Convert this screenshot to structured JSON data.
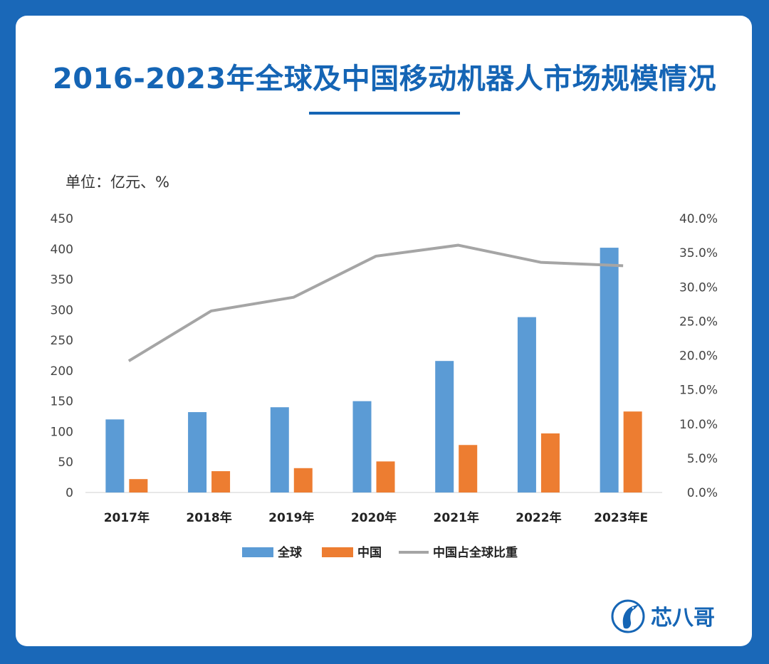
{
  "title": "2016-2023年全球及中国移动机器人市场规模情况",
  "unit_label": "单位：亿元、%",
  "brand": "芯八哥",
  "colors": {
    "background": "#1a68b8",
    "title": "#1565b5",
    "global": "#5b9bd5",
    "china": "#ed7d31",
    "share": "#a5a5a5"
  },
  "chart_data": {
    "type": "bar",
    "categories": [
      "2017年",
      "2018年",
      "2019年",
      "2020年",
      "2021年",
      "2022年",
      "2023年E"
    ],
    "series": [
      {
        "name": "全球",
        "type": "bar",
        "axis": "left",
        "values": [
          120,
          132,
          140,
          150,
          216,
          288,
          402
        ]
      },
      {
        "name": "中国",
        "type": "bar",
        "axis": "left",
        "values": [
          22,
          35,
          40,
          51,
          78,
          97,
          133
        ]
      },
      {
        "name": "中国占全球比重",
        "type": "line",
        "axis": "right",
        "values": [
          19.2,
          26.5,
          28.5,
          34.5,
          36.1,
          33.6,
          33.1
        ]
      }
    ],
    "y_left": {
      "ylim": [
        0,
        450
      ],
      "ticks": [
        "0",
        "50",
        "100",
        "150",
        "200",
        "250",
        "300",
        "350",
        "400",
        "450"
      ]
    },
    "y_right": {
      "ylim": [
        0,
        40
      ],
      "ticks": [
        "0.0%",
        "5.0%",
        "10.0%",
        "15.0%",
        "20.0%",
        "25.0%",
        "30.0%",
        "35.0%",
        "40.0%"
      ]
    },
    "grid": false,
    "legend_position": "bottom"
  }
}
